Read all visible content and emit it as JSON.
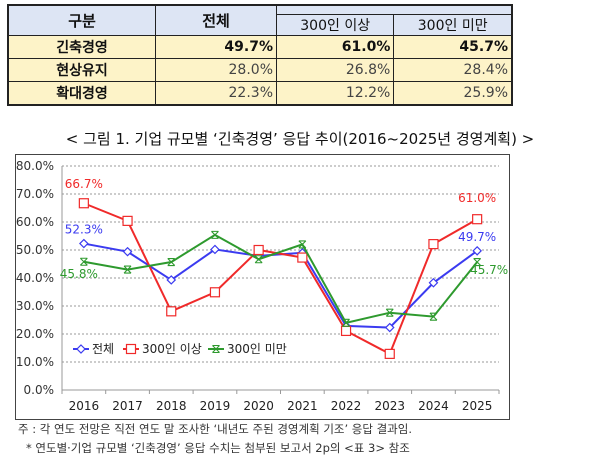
{
  "table": {
    "headers": {
      "category": "구분",
      "total": "전체",
      "large": "300인 이상",
      "small": "300인 미만"
    },
    "rows": [
      {
        "label": "긴축경영",
        "total": "49.7%",
        "large": "61.0%",
        "small": "45.7%"
      },
      {
        "label": "현상유지",
        "total": "28.0%",
        "large": "26.8%",
        "small": "28.4%"
      },
      {
        "label": "확대경영",
        "total": "22.3%",
        "large": "12.2%",
        "small": "25.9%"
      }
    ]
  },
  "chart_data": {
    "type": "line",
    "title": "< 그림 1. 기업 규모별 ‘긴축경영’ 응답 추이(2016~2025년 경영계획) >",
    "categories": [
      "2016",
      "2017",
      "2018",
      "2019",
      "2020",
      "2021",
      "2022",
      "2023",
      "2024",
      "2025"
    ],
    "ylim": [
      0,
      80
    ],
    "yticks": [
      "0.0%",
      "10.0%",
      "20.0%",
      "30.0%",
      "40.0%",
      "50.0%",
      "60.0%",
      "70.0%",
      "80.0%"
    ],
    "grid": true,
    "legend": "bottom-left inside",
    "series": [
      {
        "name": "전체",
        "color": "#3b3bf0",
        "marker": "diamond",
        "values": [
          52.3,
          49.4,
          39.3,
          50.2,
          47.9,
          49.0,
          22.9,
          22.3,
          38.3,
          49.7
        ],
        "labels": {
          "0": "52.3%",
          "9": "49.7%"
        }
      },
      {
        "name": "300인 이상",
        "color": "#f02a2a",
        "marker": "square",
        "values": [
          66.7,
          60.4,
          28.1,
          34.9,
          50.0,
          47.3,
          21.1,
          12.9,
          52.1,
          61.0
        ],
        "labels": {
          "0": "66.7%",
          "9": "61.0%"
        }
      },
      {
        "name": "300인 미만",
        "color": "#2e9a2e",
        "marker": "x",
        "values": [
          45.8,
          43.0,
          45.7,
          55.4,
          46.7,
          52.0,
          24.0,
          27.6,
          26.2,
          45.7
        ],
        "labels": {
          "0": "45.8%",
          "9": "45.7%"
        }
      }
    ]
  },
  "notes": [
    "주 : 각 연도 전망은 직전 연도 말 조사한 ‘내년도 주된 경영계획 기조’ 응답 결과임.",
    "* 연도별·기업 규모별 ‘긴축경영’ 응답 수치는 첨부된 보고서 2p의 <표 3> 참조"
  ]
}
